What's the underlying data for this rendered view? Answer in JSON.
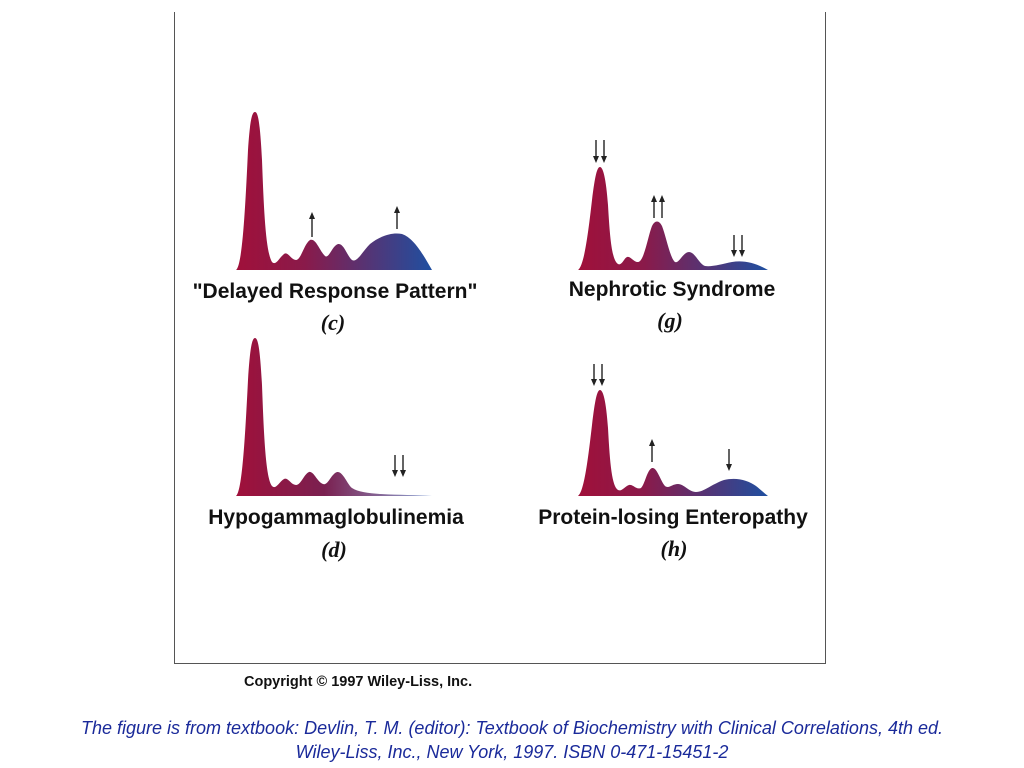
{
  "panels": [
    {
      "id": "c",
      "title": "\"Delayed Response Pattern\"",
      "letter": "(c)"
    },
    {
      "id": "g",
      "title": "Nephrotic Syndrome",
      "letter": "(g)"
    },
    {
      "id": "d",
      "title": "Hypogammaglobulinemia",
      "letter": "(d)"
    },
    {
      "id": "h",
      "title": "Protein-losing Enteropathy",
      "letter": "(h)"
    }
  ],
  "copyright": "Copyright © 1997 Wiley-Liss, Inc.",
  "caption": {
    "line1": "The figure is from textbook: Devlin, T. M. (editor): Textbook of Biochemistry with Clinical Correlations, 4th ed.",
    "line2": "Wiley-Liss, Inc., New York, 1997. ISBN 0-471-15451-2"
  },
  "colors": {
    "peak_start": "#a0103a",
    "peak_end": "#1f4fa0",
    "caption": "#1a2a9a"
  }
}
